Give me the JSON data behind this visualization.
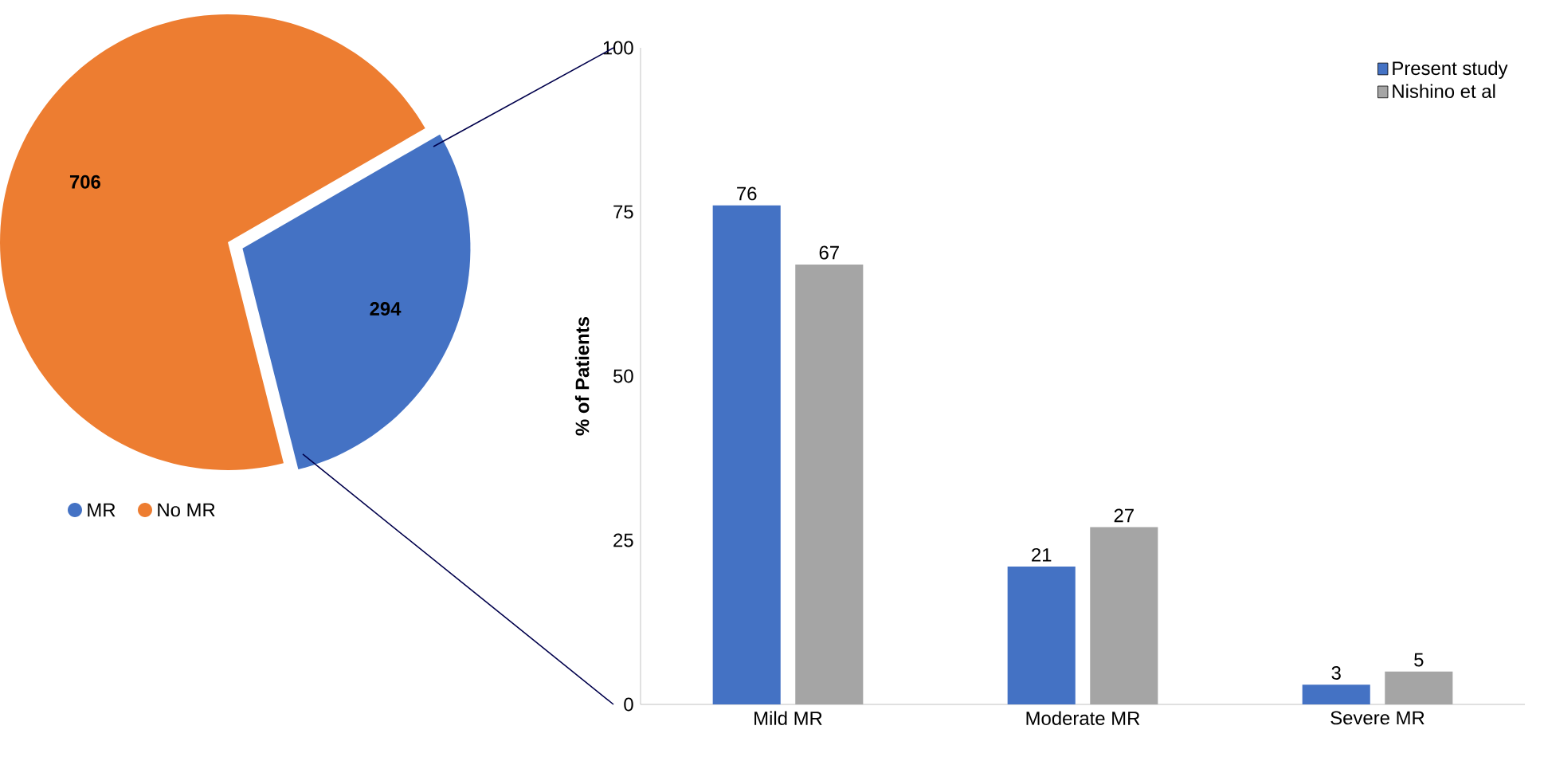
{
  "chart_data": [
    {
      "type": "pie",
      "categories": [
        "MR",
        "No MR"
      ],
      "values": [
        294,
        706
      ],
      "colors": [
        "#4472c4",
        "#ed7d31"
      ],
      "data_labels": true,
      "legend": "bottom left"
    },
    {
      "type": "bar",
      "categories": [
        "Mild MR",
        "Moderate MR",
        "Severe MR"
      ],
      "ylabel": "% of Patients",
      "ylim": [
        0,
        100
      ],
      "yticks": [
        0,
        25,
        50,
        75,
        100
      ],
      "data_labels": true,
      "legend": "top right",
      "grid": false,
      "series": [
        {
          "name": "Present study",
          "color": "#4472c4",
          "values": [
            76,
            21,
            3
          ]
        },
        {
          "name": "Nishino et al",
          "color": "#a5a5a5",
          "values": [
            67,
            27,
            5
          ]
        }
      ]
    }
  ]
}
